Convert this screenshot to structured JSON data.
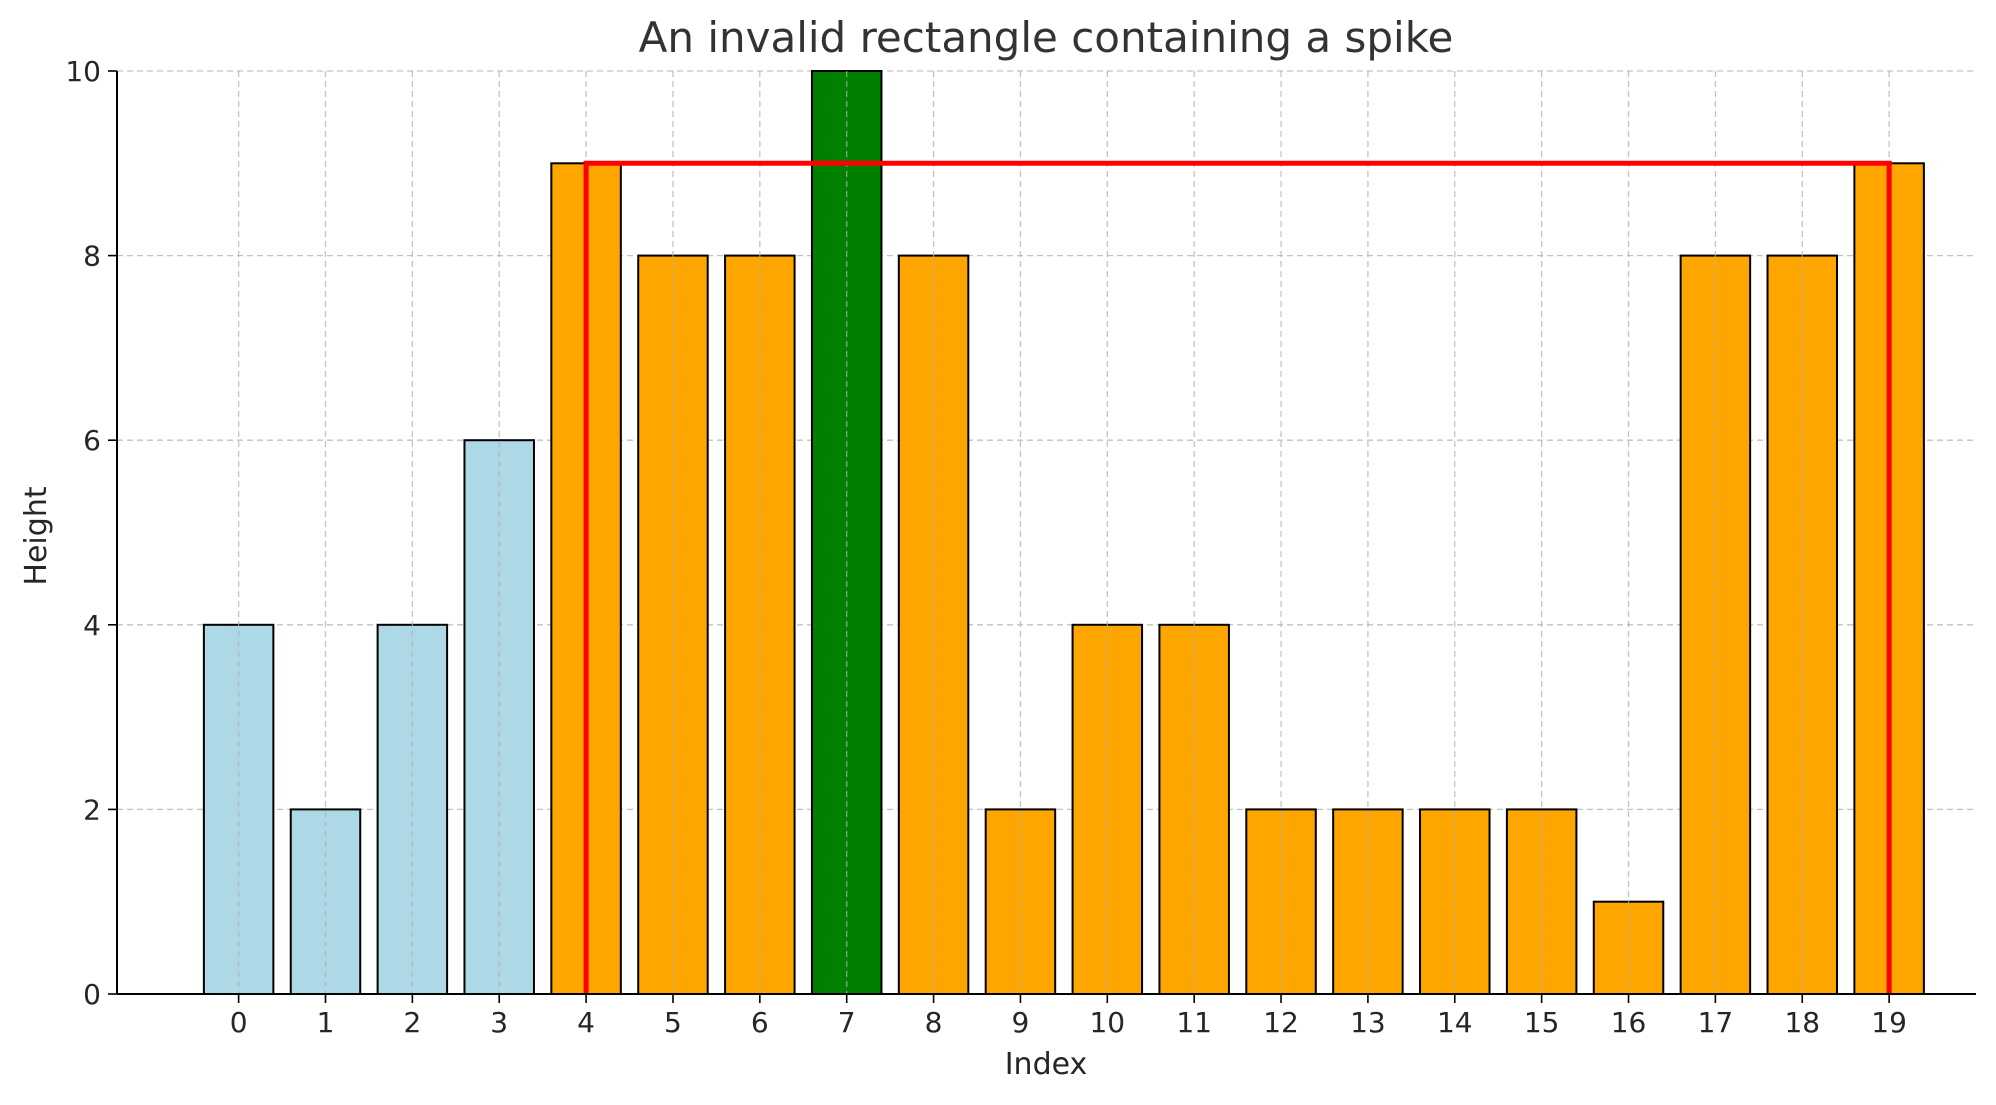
{
  "chart_data": {
    "type": "bar",
    "title": "An invalid rectangle containing a spike",
    "xlabel": "Index",
    "ylabel": "Height",
    "categories": [
      "0",
      "1",
      "2",
      "3",
      "4",
      "5",
      "6",
      "7",
      "8",
      "9",
      "10",
      "11",
      "12",
      "13",
      "14",
      "15",
      "16",
      "17",
      "18",
      "19"
    ],
    "values": [
      4,
      2,
      4,
      6,
      9,
      8,
      8,
      10,
      8,
      2,
      4,
      4,
      2,
      2,
      2,
      2,
      1,
      8,
      8,
      9
    ],
    "ylim": [
      0,
      10
    ],
    "yticks": [
      0,
      2,
      4,
      6,
      8,
      10
    ],
    "xlim": [
      -1.4,
      20.0
    ],
    "grid": true,
    "bar_colors": [
      "#add8e6",
      "#add8e6",
      "#add8e6",
      "#add8e6",
      "#ffa500",
      "#ffa500",
      "#ffa500",
      "#008000",
      "#ffa500",
      "#ffa500",
      "#ffa500",
      "#ffa500",
      "#ffa500",
      "#ffa500",
      "#ffa500",
      "#ffa500",
      "#ffa500",
      "#ffa500",
      "#ffa500",
      "#ffa500"
    ],
    "edge_color": "#000000",
    "rectangle_outline": {
      "color": "#ff0000",
      "x_start": 4,
      "x_end": 19,
      "height": 9
    }
  }
}
